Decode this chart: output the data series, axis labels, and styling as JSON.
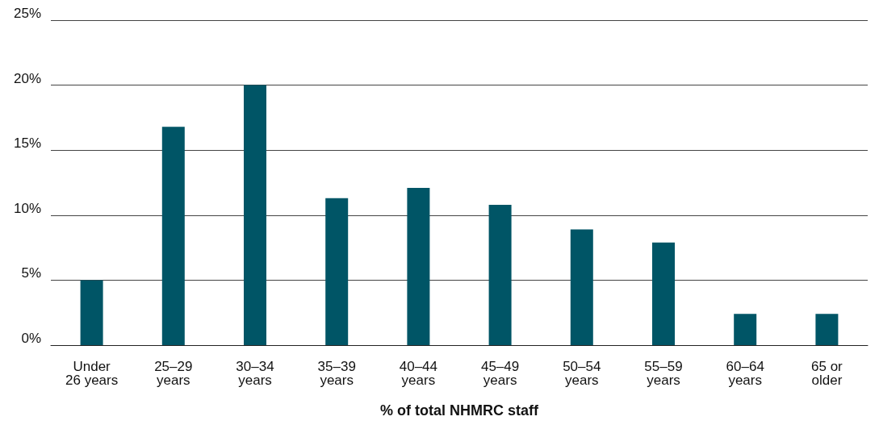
{
  "chart_data": {
    "type": "bar",
    "xlabel": "% of total NHMRC staff",
    "categories": [
      "Under\n26 years",
      "25–29\nyears",
      "30–34\nyears",
      "35–39\nyears",
      "40–44\nyears",
      "45–49\nyears",
      "50–54\nyears",
      "55–59\nyears",
      "60–64\nyears",
      "65 or\nolder"
    ],
    "values": [
      5.0,
      16.8,
      20.0,
      11.3,
      12.1,
      10.8,
      8.9,
      7.9,
      2.4,
      2.4
    ],
    "color": "#005566",
    "ylim": [
      0,
      25
    ],
    "yticks": [
      {
        "value": 0,
        "label": "0%"
      },
      {
        "value": 5,
        "label": "5%"
      },
      {
        "value": 10,
        "label": "10%"
      },
      {
        "value": 15,
        "label": "15%"
      },
      {
        "value": 20,
        "label": "20%"
      },
      {
        "value": 25,
        "label": "25%"
      }
    ],
    "grid": "y"
  }
}
